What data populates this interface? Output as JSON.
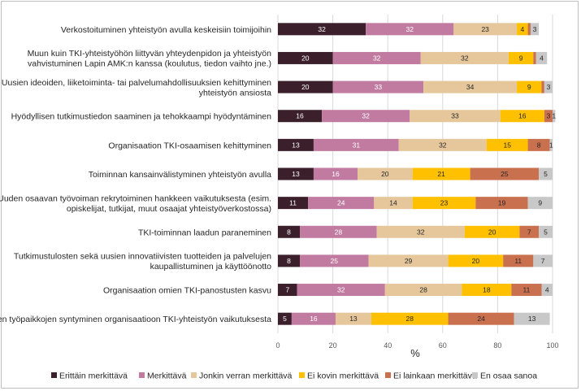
{
  "chart_data": {
    "type": "bar",
    "orientation": "horizontal",
    "stacked": true,
    "xlabel": "%",
    "xlim": [
      0,
      100
    ],
    "xticks": [
      0,
      20,
      40,
      60,
      80,
      100
    ],
    "grid": true,
    "legend_position": "bottom",
    "categories": [
      [
        "Verkostoituminen yhteistyön avulla keskeisiin toimijoihin"
      ],
      [
        "Muun kuin TKI-yhteistyöhön liittyvän yhteydenpidon ja yhteistyön",
        "vahvistuminen Lapin AMK:n kanssa (koulutus, tiedon vaihto jne.)"
      ],
      [
        "Uusien ideoiden, liiketoiminta- tai palvelumahdollisuuksien kehittyminen",
        "yhteistyön ansiosta"
      ],
      [
        "Hyödyllisen tutkimustiedon saaminen ja tehokkaampi hyödyntäminen"
      ],
      [
        "Organisaation TKI-osaamisen kehittyminen"
      ],
      [
        "Toiminnan kansainvälistyminen yhteistyön avulla"
      ],
      [
        "Uuden osaavan työvoiman rekrytoiminen hankkeen vaikutuksesta (esim.",
        "opiskelijat, tutkijat, muut osaajat yhteistyöverkostossa)"
      ],
      [
        "TKI-toiminnan laadun paraneminen"
      ],
      [
        "Tutkimustulosten sekä uusien innovatiivisten tuotteiden ja palvelujen",
        "kaupallistuminen ja käyttöönotto"
      ],
      [
        "Organisaation omien TKI-panostusten kasvu"
      ],
      [
        "Uusien työpaikkojen syntyminen organisaatioon TKI-yhteistyön vaikutuksesta"
      ]
    ],
    "series": [
      {
        "name": "Erittäin merkittävä",
        "color": "#3b1f2b",
        "label_color": "#ffffff",
        "values": [
          32,
          20,
          20,
          16,
          13,
          13,
          11,
          8,
          8,
          7,
          5
        ]
      },
      {
        "name": "Merkittävä",
        "color": "#c27ba0",
        "label_color": "#ffffff",
        "values": [
          32,
          32,
          33,
          32,
          31,
          16,
          24,
          28,
          25,
          32,
          16
        ]
      },
      {
        "name": "Jonkin verran merkittävä",
        "color": "#e6c79c",
        "label_color": "#262626",
        "values": [
          23,
          32,
          34,
          33,
          32,
          20,
          14,
          32,
          29,
          28,
          13
        ]
      },
      {
        "name": "Ei kovin merkittävä",
        "color": "#ffc000",
        "label_color": "#262626",
        "values": [
          4,
          9,
          9,
          16,
          15,
          21,
          23,
          20,
          20,
          18,
          28
        ]
      },
      {
        "name": "Ei lainkaan merkittävä",
        "color": "#c9704f",
        "label_color": "#262626",
        "values": [
          1,
          1,
          1,
          3,
          8,
          25,
          19,
          7,
          11,
          11,
          24
        ]
      },
      {
        "name": "En osaa sanoa",
        "color": "#c8c8c8",
        "label_color": "#262626",
        "values": [
          3,
          4,
          3,
          1,
          1,
          5,
          9,
          5,
          7,
          4,
          13
        ]
      }
    ],
    "value_labels": [
      [
        "32",
        "32",
        "23",
        "4",
        "",
        "3"
      ],
      [
        "20",
        "32",
        "32",
        "9",
        "",
        "4"
      ],
      [
        "20",
        "33",
        "34",
        "9",
        "",
        "3"
      ],
      [
        "16",
        "32",
        "33",
        "16",
        "3",
        "1"
      ],
      [
        "13",
        "31",
        "32",
        "15",
        "8",
        "1"
      ],
      [
        "13",
        "16",
        "20",
        "21",
        "25",
        "5"
      ],
      [
        "11",
        "24",
        "14",
        "23",
        "19",
        "9"
      ],
      [
        "8",
        "28",
        "32",
        "20",
        "7",
        "5"
      ],
      [
        "8",
        "25",
        "29",
        "20",
        "11",
        "7"
      ],
      [
        "7",
        "32",
        "28",
        "18",
        "11",
        "4"
      ],
      [
        "5",
        "16",
        "13",
        "28",
        "24",
        "13"
      ]
    ]
  }
}
